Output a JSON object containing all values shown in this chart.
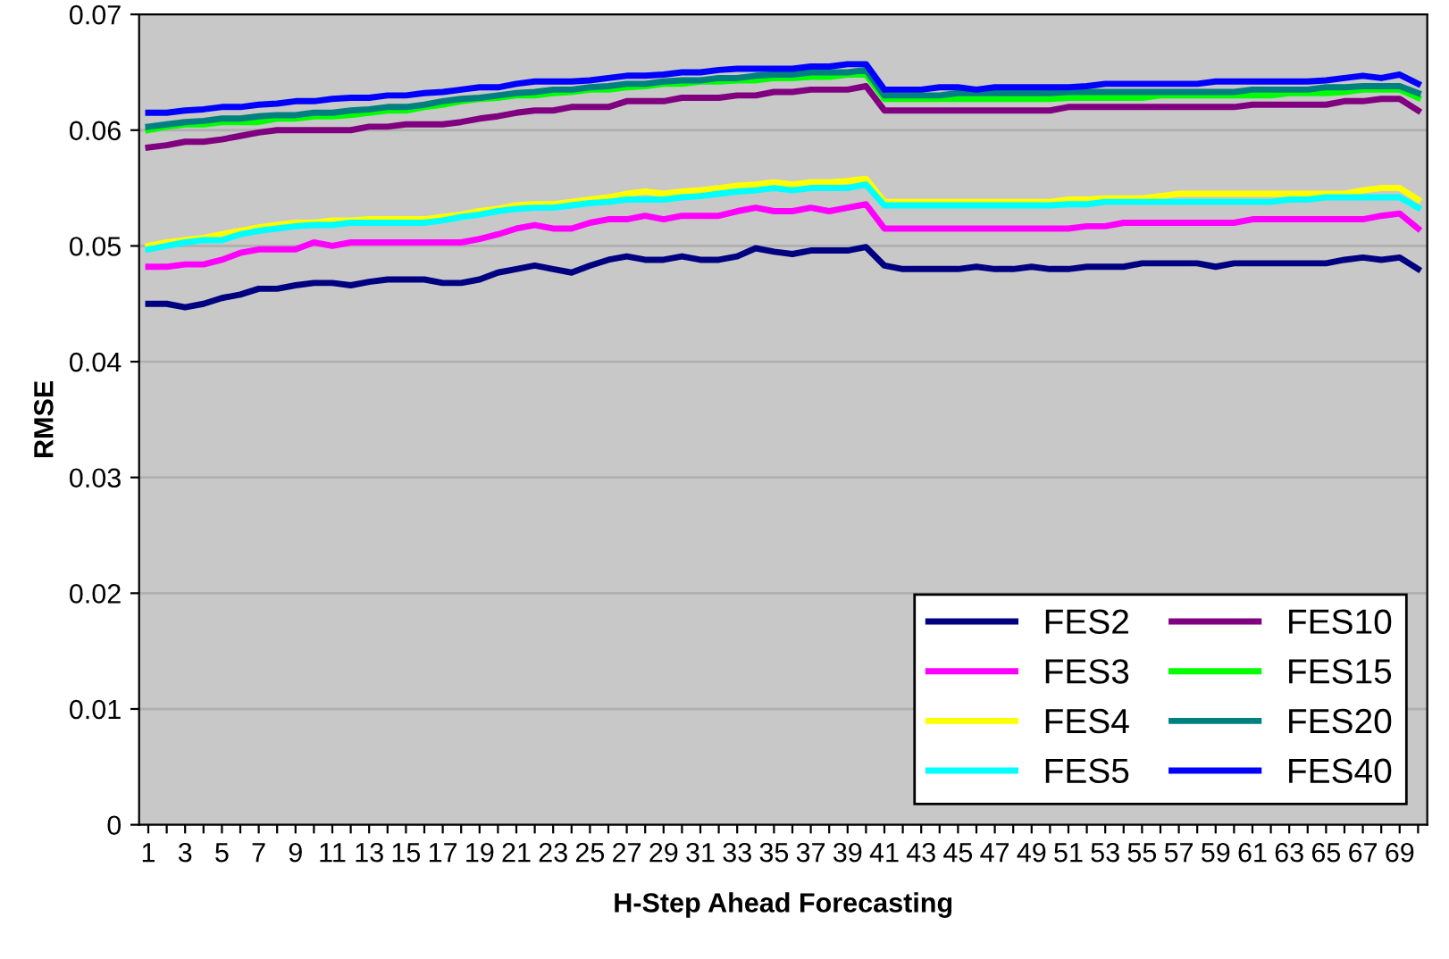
{
  "chart_data": {
    "type": "line",
    "xlabel": "H-Step Ahead Forecasting",
    "ylabel": "RMSE",
    "categories": [
      "1",
      null,
      "3",
      null,
      "5",
      null,
      "7",
      null,
      "9",
      null,
      "11",
      null,
      "13",
      null,
      "15",
      null,
      "17",
      null,
      "19",
      null,
      "21",
      null,
      "23",
      null,
      "25",
      null,
      "27",
      null,
      "29",
      null,
      "31",
      null,
      "33",
      null,
      "35",
      null,
      "37",
      null,
      "39",
      null,
      "41",
      null,
      "43",
      null,
      "45",
      null,
      "47",
      null,
      "49",
      null,
      "51",
      null,
      "53",
      null,
      "55",
      null,
      "57",
      null,
      "59",
      null,
      "61",
      null,
      "63",
      null,
      "65",
      null,
      "67",
      null,
      "69",
      null
    ],
    "ylim": [
      0,
      0.07
    ],
    "yticks": [
      0,
      0.01,
      0.02,
      0.03,
      0.04,
      0.05,
      0.06,
      0.07
    ],
    "grid": "y",
    "legend": "bottom right",
    "line_style": "solid",
    "series": [
      {
        "name": "FES2",
        "color": "#000080",
        "values": [
          0.045,
          0.045,
          0.0447,
          0.045,
          0.0455,
          0.0458,
          0.0463,
          0.0463,
          0.0466,
          0.0468,
          0.0468,
          0.0466,
          0.0469,
          0.0471,
          0.0471,
          0.0471,
          0.0468,
          0.0468,
          0.0471,
          0.0477,
          0.048,
          0.0483,
          0.048,
          0.0477,
          0.0483,
          0.0488,
          0.0491,
          0.0488,
          0.0488,
          0.0491,
          0.0488,
          0.0488,
          0.0491,
          0.0498,
          0.0495,
          0.0493,
          0.0496,
          0.0496,
          0.0496,
          0.0499,
          0.0483,
          0.048,
          0.048,
          0.048,
          0.048,
          0.0482,
          0.048,
          0.048,
          0.0482,
          0.048,
          0.048,
          0.0482,
          0.0482,
          0.0482,
          0.0485,
          0.0485,
          0.0485,
          0.0485,
          0.0482,
          0.0485,
          0.0485,
          0.0485,
          0.0485,
          0.0485,
          0.0485,
          0.0488,
          0.049,
          0.0488,
          0.049,
          0.048
        ]
      },
      {
        "name": "FES3",
        "color": "#ff00ff",
        "values": [
          0.0482,
          0.0482,
          0.0484,
          0.0484,
          0.0488,
          0.0494,
          0.0497,
          0.0497,
          0.0497,
          0.0503,
          0.05,
          0.0503,
          0.0503,
          0.0503,
          0.0503,
          0.0503,
          0.0503,
          0.0503,
          0.0506,
          0.051,
          0.0515,
          0.0518,
          0.0515,
          0.0515,
          0.052,
          0.0523,
          0.0523,
          0.0526,
          0.0523,
          0.0526,
          0.0526,
          0.0526,
          0.053,
          0.0533,
          0.053,
          0.053,
          0.0533,
          0.053,
          0.0533,
          0.0536,
          0.0515,
          0.0515,
          0.0515,
          0.0515,
          0.0515,
          0.0515,
          0.0515,
          0.0515,
          0.0515,
          0.0515,
          0.0515,
          0.0517,
          0.0517,
          0.052,
          0.052,
          0.052,
          0.052,
          0.052,
          0.052,
          0.052,
          0.0523,
          0.0523,
          0.0523,
          0.0523,
          0.0523,
          0.0523,
          0.0523,
          0.0526,
          0.0528,
          0.0515
        ]
      },
      {
        "name": "FES4",
        "color": "#ffff00",
        "values": [
          0.05,
          0.0503,
          0.0505,
          0.0507,
          0.051,
          0.0513,
          0.0516,
          0.0518,
          0.052,
          0.052,
          0.0522,
          0.0522,
          0.0523,
          0.0523,
          0.0523,
          0.0523,
          0.0525,
          0.0527,
          0.053,
          0.0532,
          0.0535,
          0.0536,
          0.0536,
          0.0538,
          0.054,
          0.0542,
          0.0545,
          0.0547,
          0.0545,
          0.0547,
          0.0548,
          0.055,
          0.0552,
          0.0553,
          0.0555,
          0.0553,
          0.0555,
          0.0555,
          0.0556,
          0.0558,
          0.0538,
          0.0538,
          0.0538,
          0.0538,
          0.0538,
          0.0538,
          0.0538,
          0.0538,
          0.0538,
          0.0538,
          0.054,
          0.054,
          0.0541,
          0.0541,
          0.0541,
          0.0543,
          0.0545,
          0.0545,
          0.0545,
          0.0545,
          0.0545,
          0.0545,
          0.0545,
          0.0545,
          0.0545,
          0.0545,
          0.0548,
          0.055,
          0.055,
          0.054
        ]
      },
      {
        "name": "FES5",
        "color": "#00ffff",
        "values": [
          0.0497,
          0.05,
          0.0503,
          0.0505,
          0.0505,
          0.051,
          0.0513,
          0.0515,
          0.0517,
          0.0518,
          0.0518,
          0.052,
          0.052,
          0.052,
          0.052,
          0.052,
          0.0522,
          0.0525,
          0.0527,
          0.053,
          0.0532,
          0.0533,
          0.0533,
          0.0535,
          0.0537,
          0.0538,
          0.054,
          0.054,
          0.054,
          0.0542,
          0.0543,
          0.0545,
          0.0547,
          0.0548,
          0.055,
          0.0548,
          0.055,
          0.055,
          0.055,
          0.0553,
          0.0535,
          0.0535,
          0.0535,
          0.0535,
          0.0535,
          0.0535,
          0.0535,
          0.0535,
          0.0535,
          0.0535,
          0.0536,
          0.0536,
          0.0538,
          0.0538,
          0.0538,
          0.0538,
          0.0538,
          0.0538,
          0.0538,
          0.0538,
          0.0538,
          0.0538,
          0.054,
          0.054,
          0.0542,
          0.0542,
          0.0542,
          0.0542,
          0.0542,
          0.0533
        ]
      },
      {
        "name": "FES10",
        "color": "#800080",
        "values": [
          0.0585,
          0.0587,
          0.059,
          0.059,
          0.0592,
          0.0595,
          0.0598,
          0.06,
          0.06,
          0.06,
          0.06,
          0.06,
          0.0603,
          0.0603,
          0.0605,
          0.0605,
          0.0605,
          0.0607,
          0.061,
          0.0612,
          0.0615,
          0.0617,
          0.0617,
          0.062,
          0.062,
          0.062,
          0.0625,
          0.0625,
          0.0625,
          0.0628,
          0.0628,
          0.0628,
          0.063,
          0.063,
          0.0633,
          0.0633,
          0.0635,
          0.0635,
          0.0635,
          0.0638,
          0.0617,
          0.0617,
          0.0617,
          0.0617,
          0.0617,
          0.0617,
          0.0617,
          0.0617,
          0.0617,
          0.0617,
          0.062,
          0.062,
          0.062,
          0.062,
          0.062,
          0.062,
          0.062,
          0.062,
          0.062,
          0.062,
          0.0622,
          0.0622,
          0.0622,
          0.0622,
          0.0622,
          0.0625,
          0.0625,
          0.0627,
          0.0627,
          0.0617
        ]
      },
      {
        "name": "FES15",
        "color": "#00ff00",
        "values": [
          0.06,
          0.0603,
          0.0605,
          0.0605,
          0.0607,
          0.0607,
          0.0607,
          0.061,
          0.061,
          0.0612,
          0.0612,
          0.0613,
          0.0615,
          0.0617,
          0.0617,
          0.062,
          0.0622,
          0.0625,
          0.0627,
          0.0628,
          0.063,
          0.063,
          0.0632,
          0.0633,
          0.0635,
          0.0635,
          0.0637,
          0.0638,
          0.064,
          0.064,
          0.0642,
          0.0642,
          0.0643,
          0.0643,
          0.0645,
          0.0645,
          0.0646,
          0.0646,
          0.0648,
          0.0648,
          0.0627,
          0.0627,
          0.0627,
          0.0627,
          0.0627,
          0.0627,
          0.0627,
          0.0627,
          0.0627,
          0.0627,
          0.0628,
          0.0628,
          0.0628,
          0.0628,
          0.0628,
          0.063,
          0.063,
          0.063,
          0.063,
          0.063,
          0.063,
          0.063,
          0.0632,
          0.0632,
          0.0632,
          0.0633,
          0.0635,
          0.0635,
          0.0635,
          0.0628
        ]
      },
      {
        "name": "FES20",
        "color": "#008080",
        "values": [
          0.0603,
          0.0605,
          0.0607,
          0.0608,
          0.061,
          0.061,
          0.0612,
          0.0613,
          0.0613,
          0.0615,
          0.0615,
          0.0617,
          0.0618,
          0.062,
          0.062,
          0.0622,
          0.0625,
          0.0627,
          0.0628,
          0.063,
          0.0632,
          0.0633,
          0.0635,
          0.0635,
          0.0637,
          0.0638,
          0.064,
          0.064,
          0.0642,
          0.0643,
          0.0643,
          0.0645,
          0.0645,
          0.0647,
          0.0648,
          0.0648,
          0.065,
          0.065,
          0.065,
          0.0652,
          0.063,
          0.063,
          0.063,
          0.063,
          0.0632,
          0.0632,
          0.0632,
          0.0632,
          0.0632,
          0.0632,
          0.0633,
          0.0633,
          0.0633,
          0.0633,
          0.0633,
          0.0633,
          0.0633,
          0.0633,
          0.0633,
          0.0633,
          0.0635,
          0.0635,
          0.0635,
          0.0635,
          0.0637,
          0.0637,
          0.0638,
          0.0638,
          0.0638,
          0.0632
        ]
      },
      {
        "name": "FES40",
        "color": "#0000ff",
        "values": [
          0.0615,
          0.0615,
          0.0617,
          0.0618,
          0.062,
          0.062,
          0.0622,
          0.0623,
          0.0625,
          0.0625,
          0.0627,
          0.0628,
          0.0628,
          0.063,
          0.063,
          0.0632,
          0.0633,
          0.0635,
          0.0637,
          0.0637,
          0.064,
          0.0642,
          0.0642,
          0.0642,
          0.0643,
          0.0645,
          0.0647,
          0.0647,
          0.0648,
          0.065,
          0.065,
          0.0652,
          0.0653,
          0.0653,
          0.0653,
          0.0653,
          0.0655,
          0.0655,
          0.0657,
          0.0657,
          0.0635,
          0.0635,
          0.0635,
          0.0637,
          0.0637,
          0.0635,
          0.0637,
          0.0637,
          0.0637,
          0.0637,
          0.0637,
          0.0638,
          0.064,
          0.064,
          0.064,
          0.064,
          0.064,
          0.064,
          0.0642,
          0.0642,
          0.0642,
          0.0642,
          0.0642,
          0.0642,
          0.0643,
          0.0645,
          0.0647,
          0.0645,
          0.0648,
          0.064
        ]
      }
    ]
  }
}
